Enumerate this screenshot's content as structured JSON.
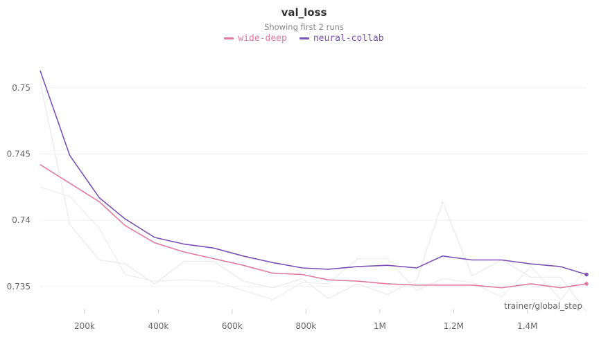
{
  "chart_data": {
    "type": "line",
    "title": "val_loss",
    "subtitle": "Showing first 2 runs",
    "xlabel": "trainer/global_step",
    "ylabel": "",
    "grid": true,
    "legend_position": "top-center",
    "xlim": [
      80000,
      1560000
    ],
    "ylim": [
      0.733,
      0.7535
    ],
    "x_ticks": [
      200000,
      400000,
      600000,
      800000,
      1000000,
      1200000,
      1400000
    ],
    "x_tick_labels": [
      "200k",
      "400k",
      "600k",
      "800k",
      "1M",
      "1.2M",
      "1.4M"
    ],
    "y_ticks": [
      0.735,
      0.74,
      0.745,
      0.75
    ],
    "y_tick_labels": [
      "0.735",
      "0.74",
      "0.745",
      "0.75"
    ],
    "series": [
      {
        "name": "wide-deep",
        "color": "#e07aa0",
        "x": [
          80000,
          160000,
          240000,
          310000,
          390000,
          470000,
          550000,
          630000,
          710000,
          790000,
          860000,
          940000,
          1020000,
          1100000,
          1170000,
          1250000,
          1330000,
          1410000,
          1490000,
          1560000
        ],
        "y": [
          0.7442,
          0.7428,
          0.7414,
          0.7396,
          0.7383,
          0.7376,
          0.7371,
          0.7366,
          0.736,
          0.7359,
          0.7355,
          0.7354,
          0.7352,
          0.7351,
          0.7351,
          0.7351,
          0.7349,
          0.7352,
          0.7349,
          0.7352
        ]
      },
      {
        "name": "neural-collab",
        "color": "#7b52b8",
        "x": [
          80000,
          160000,
          240000,
          310000,
          390000,
          470000,
          550000,
          630000,
          710000,
          790000,
          860000,
          940000,
          1020000,
          1100000,
          1170000,
          1250000,
          1330000,
          1410000,
          1490000,
          1560000
        ],
        "y": [
          0.7513,
          0.7449,
          0.7417,
          0.7401,
          0.7387,
          0.7382,
          0.7379,
          0.7373,
          0.7368,
          0.7364,
          0.7363,
          0.7365,
          0.7366,
          0.7364,
          0.7373,
          0.737,
          0.737,
          0.7367,
          0.7365,
          0.7359
        ]
      }
    ],
    "background_series": [
      {
        "color": "#ebebeb",
        "x": [
          80000,
          160000,
          240000,
          310000,
          390000,
          470000,
          550000,
          630000,
          710000,
          790000,
          860000,
          940000,
          1020000,
          1100000,
          1170000,
          1250000,
          1330000,
          1410000,
          1490000,
          1560000
        ],
        "y": [
          0.7505,
          0.7397,
          0.737,
          0.7367,
          0.7352,
          0.7369,
          0.7369,
          0.7354,
          0.7349,
          0.7356,
          0.7341,
          0.7352,
          0.7344,
          0.7355,
          0.7414,
          0.7358,
          0.737,
          0.7357,
          0.7357,
          0.7331
        ]
      },
      {
        "color": "#eeeeee",
        "x": [
          80000,
          160000,
          240000,
          310000,
          390000,
          470000,
          550000,
          630000,
          710000,
          790000,
          860000,
          940000,
          1020000,
          1100000,
          1170000,
          1250000,
          1330000,
          1410000,
          1490000,
          1560000
        ],
        "y": [
          0.7425,
          0.7418,
          0.7394,
          0.7359,
          0.7354,
          0.7355,
          0.7354,
          0.7347,
          0.734,
          0.7353,
          0.7352,
          0.7371,
          0.7371,
          0.7347,
          0.7356,
          0.7353,
          0.7342,
          0.7365,
          0.734,
          0.7363
        ]
      }
    ]
  }
}
